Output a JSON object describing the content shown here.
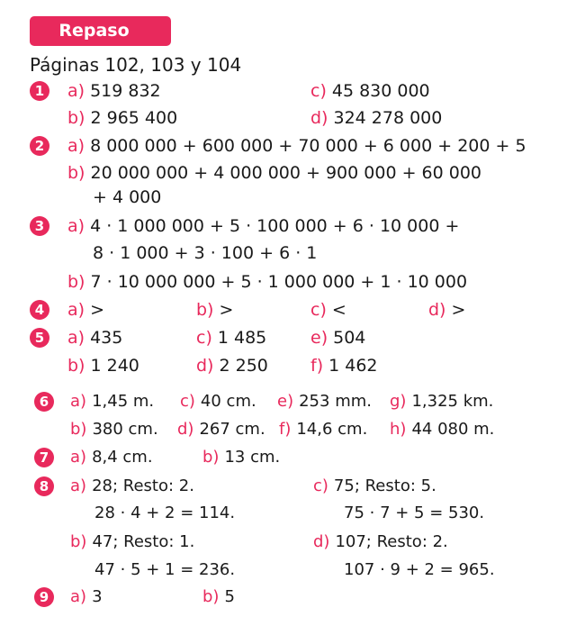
{
  "header": {
    "banner": "Repaso",
    "pages": "Páginas 102, 103 y 104"
  },
  "colors": {
    "accent": "#e8295c",
    "text": "#1a1a1a"
  },
  "ex1": {
    "num": "1",
    "a": "519 832",
    "b": "2 965 400",
    "c": "45 830 000",
    "d": "324 278 000"
  },
  "ex2": {
    "num": "2",
    "a": "8 000 000 + 600 000 + 70 000 + 6 000 + 200 + 5",
    "b1": "20 000 000 + 4 000 000 + 900 000 + 60 000",
    "b2": "+ 4 000"
  },
  "ex3": {
    "num": "3",
    "a1": "4 · 1 000 000 + 5 · 100 000 + 6 · 10 000 +",
    "a2": "8 · 1 000 + 3 · 100 + 6 · 1",
    "b": "7 · 10 000 000 + 5 · 1 000 000 + 1 · 10 000"
  },
  "ex4": {
    "num": "4",
    "a": ">",
    "b": ">",
    "c": "<",
    "d": ">"
  },
  "ex5": {
    "num": "5",
    "a": "435",
    "b": "1 240",
    "c": "1 485",
    "d": "2 250",
    "e": "504",
    "f": "1 462"
  },
  "ex6": {
    "num": "6",
    "a": "1,45 m.",
    "b": "380 cm.",
    "c": "40 cm.",
    "d": "267 cm.",
    "e": "253 mm.",
    "f": "14,6 cm.",
    "g": "1,325 km.",
    "h": "44 080 m."
  },
  "ex7": {
    "num": "7",
    "a": "8,4 cm.",
    "b": "13 cm."
  },
  "ex8": {
    "num": "8",
    "a1": "28; Resto: 2.",
    "a2": "28 · 4 + 2 = 114.",
    "b1": "47; Resto: 1.",
    "b2": "47 · 5 + 1 = 236.",
    "c1": "75; Resto: 5.",
    "c2": "75 · 7 + 5 = 530.",
    "d1": "107; Resto: 2.",
    "d2": "107 · 9 + 2 = 965."
  },
  "ex9": {
    "num": "9",
    "a": "3",
    "b": "5"
  },
  "labels": {
    "a": "a)",
    "b": "b)",
    "c": "c)",
    "d": "d)",
    "e": "e)",
    "f": "f)",
    "g": "g)",
    "h": "h)"
  }
}
